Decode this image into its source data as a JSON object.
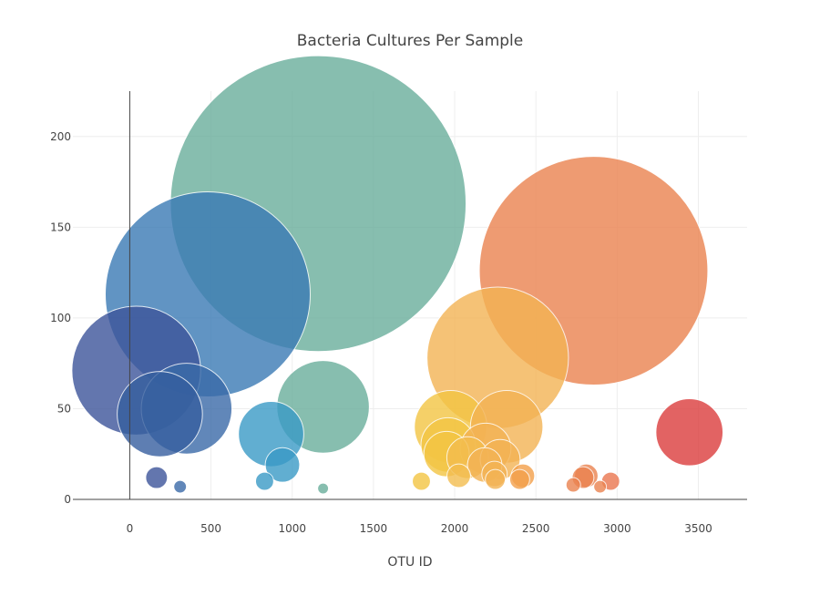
{
  "chart_data": {
    "type": "scatter",
    "subtype": "bubble",
    "title": "Bacteria Cultures Per Sample",
    "xlabel": "OTU ID",
    "ylabel": "",
    "xlim": [
      -350,
      3800
    ],
    "ylim": [
      0,
      225
    ],
    "x_ticks": [
      0,
      500,
      1000,
      1500,
      2000,
      2500,
      3000,
      3500
    ],
    "y_ticks": [
      0,
      50,
      100,
      150,
      200
    ],
    "grid": true,
    "legend": "none",
    "color_scale": "Earth-like (OTU ID mapped from dark blue through teal and yellow to red)",
    "points": [
      {
        "x": 40,
        "y": 71,
        "color": "#3d559a"
      },
      {
        "x": 185,
        "y": 47,
        "color": "#365f9f"
      },
      {
        "x": 350,
        "y": 50,
        "color": "#3a6aa8"
      },
      {
        "x": 480,
        "y": 113,
        "color": "#3a7ab5"
      },
      {
        "x": 165,
        "y": 12,
        "color": "#3d559a"
      },
      {
        "x": 310,
        "y": 7,
        "color": "#3a6aa8"
      },
      {
        "x": 870,
        "y": 36,
        "color": "#3a9ac6"
      },
      {
        "x": 940,
        "y": 19,
        "color": "#3a9ac6"
      },
      {
        "x": 830,
        "y": 10,
        "color": "#3a9ac6"
      },
      {
        "x": 1160,
        "y": 163,
        "color": "#6aae9c"
      },
      {
        "x": 1190,
        "y": 51,
        "color": "#6aae9c"
      },
      {
        "x": 1190,
        "y": 6,
        "color": "#6aae9c"
      },
      {
        "x": 1975,
        "y": 40,
        "color": "#f3c543"
      },
      {
        "x": 1960,
        "y": 30,
        "color": "#f3c543"
      },
      {
        "x": 1950,
        "y": 25,
        "color": "#f3c543"
      },
      {
        "x": 2080,
        "y": 23,
        "color": "#f3bd4f"
      },
      {
        "x": 2025,
        "y": 13,
        "color": "#f3bd4f"
      },
      {
        "x": 1795,
        "y": 10,
        "color": "#f3c543"
      },
      {
        "x": 2265,
        "y": 78,
        "color": "#f3b354"
      },
      {
        "x": 2320,
        "y": 40,
        "color": "#f3b354"
      },
      {
        "x": 2190,
        "y": 28,
        "color": "#f3b354"
      },
      {
        "x": 2280,
        "y": 22,
        "color": "#f3b354"
      },
      {
        "x": 2185,
        "y": 19,
        "color": "#f3b354"
      },
      {
        "x": 2245,
        "y": 14,
        "color": "#f3b354"
      },
      {
        "x": 2250,
        "y": 11,
        "color": "#f3b354"
      },
      {
        "x": 2420,
        "y": 13,
        "color": "#f3a04a"
      },
      {
        "x": 2400,
        "y": 11,
        "color": "#f3a04a"
      },
      {
        "x": 2855,
        "y": 126,
        "color": "#eb8350"
      },
      {
        "x": 2810,
        "y": 13,
        "color": "#eb8350"
      },
      {
        "x": 2790,
        "y": 12,
        "color": "#eb8350"
      },
      {
        "x": 2960,
        "y": 10,
        "color": "#eb7650"
      },
      {
        "x": 2730,
        "y": 8,
        "color": "#eb8350"
      },
      {
        "x": 2895,
        "y": 7,
        "color": "#eb8350"
      },
      {
        "x": 3445,
        "y": 37,
        "color": "#dc3d3d"
      }
    ]
  }
}
